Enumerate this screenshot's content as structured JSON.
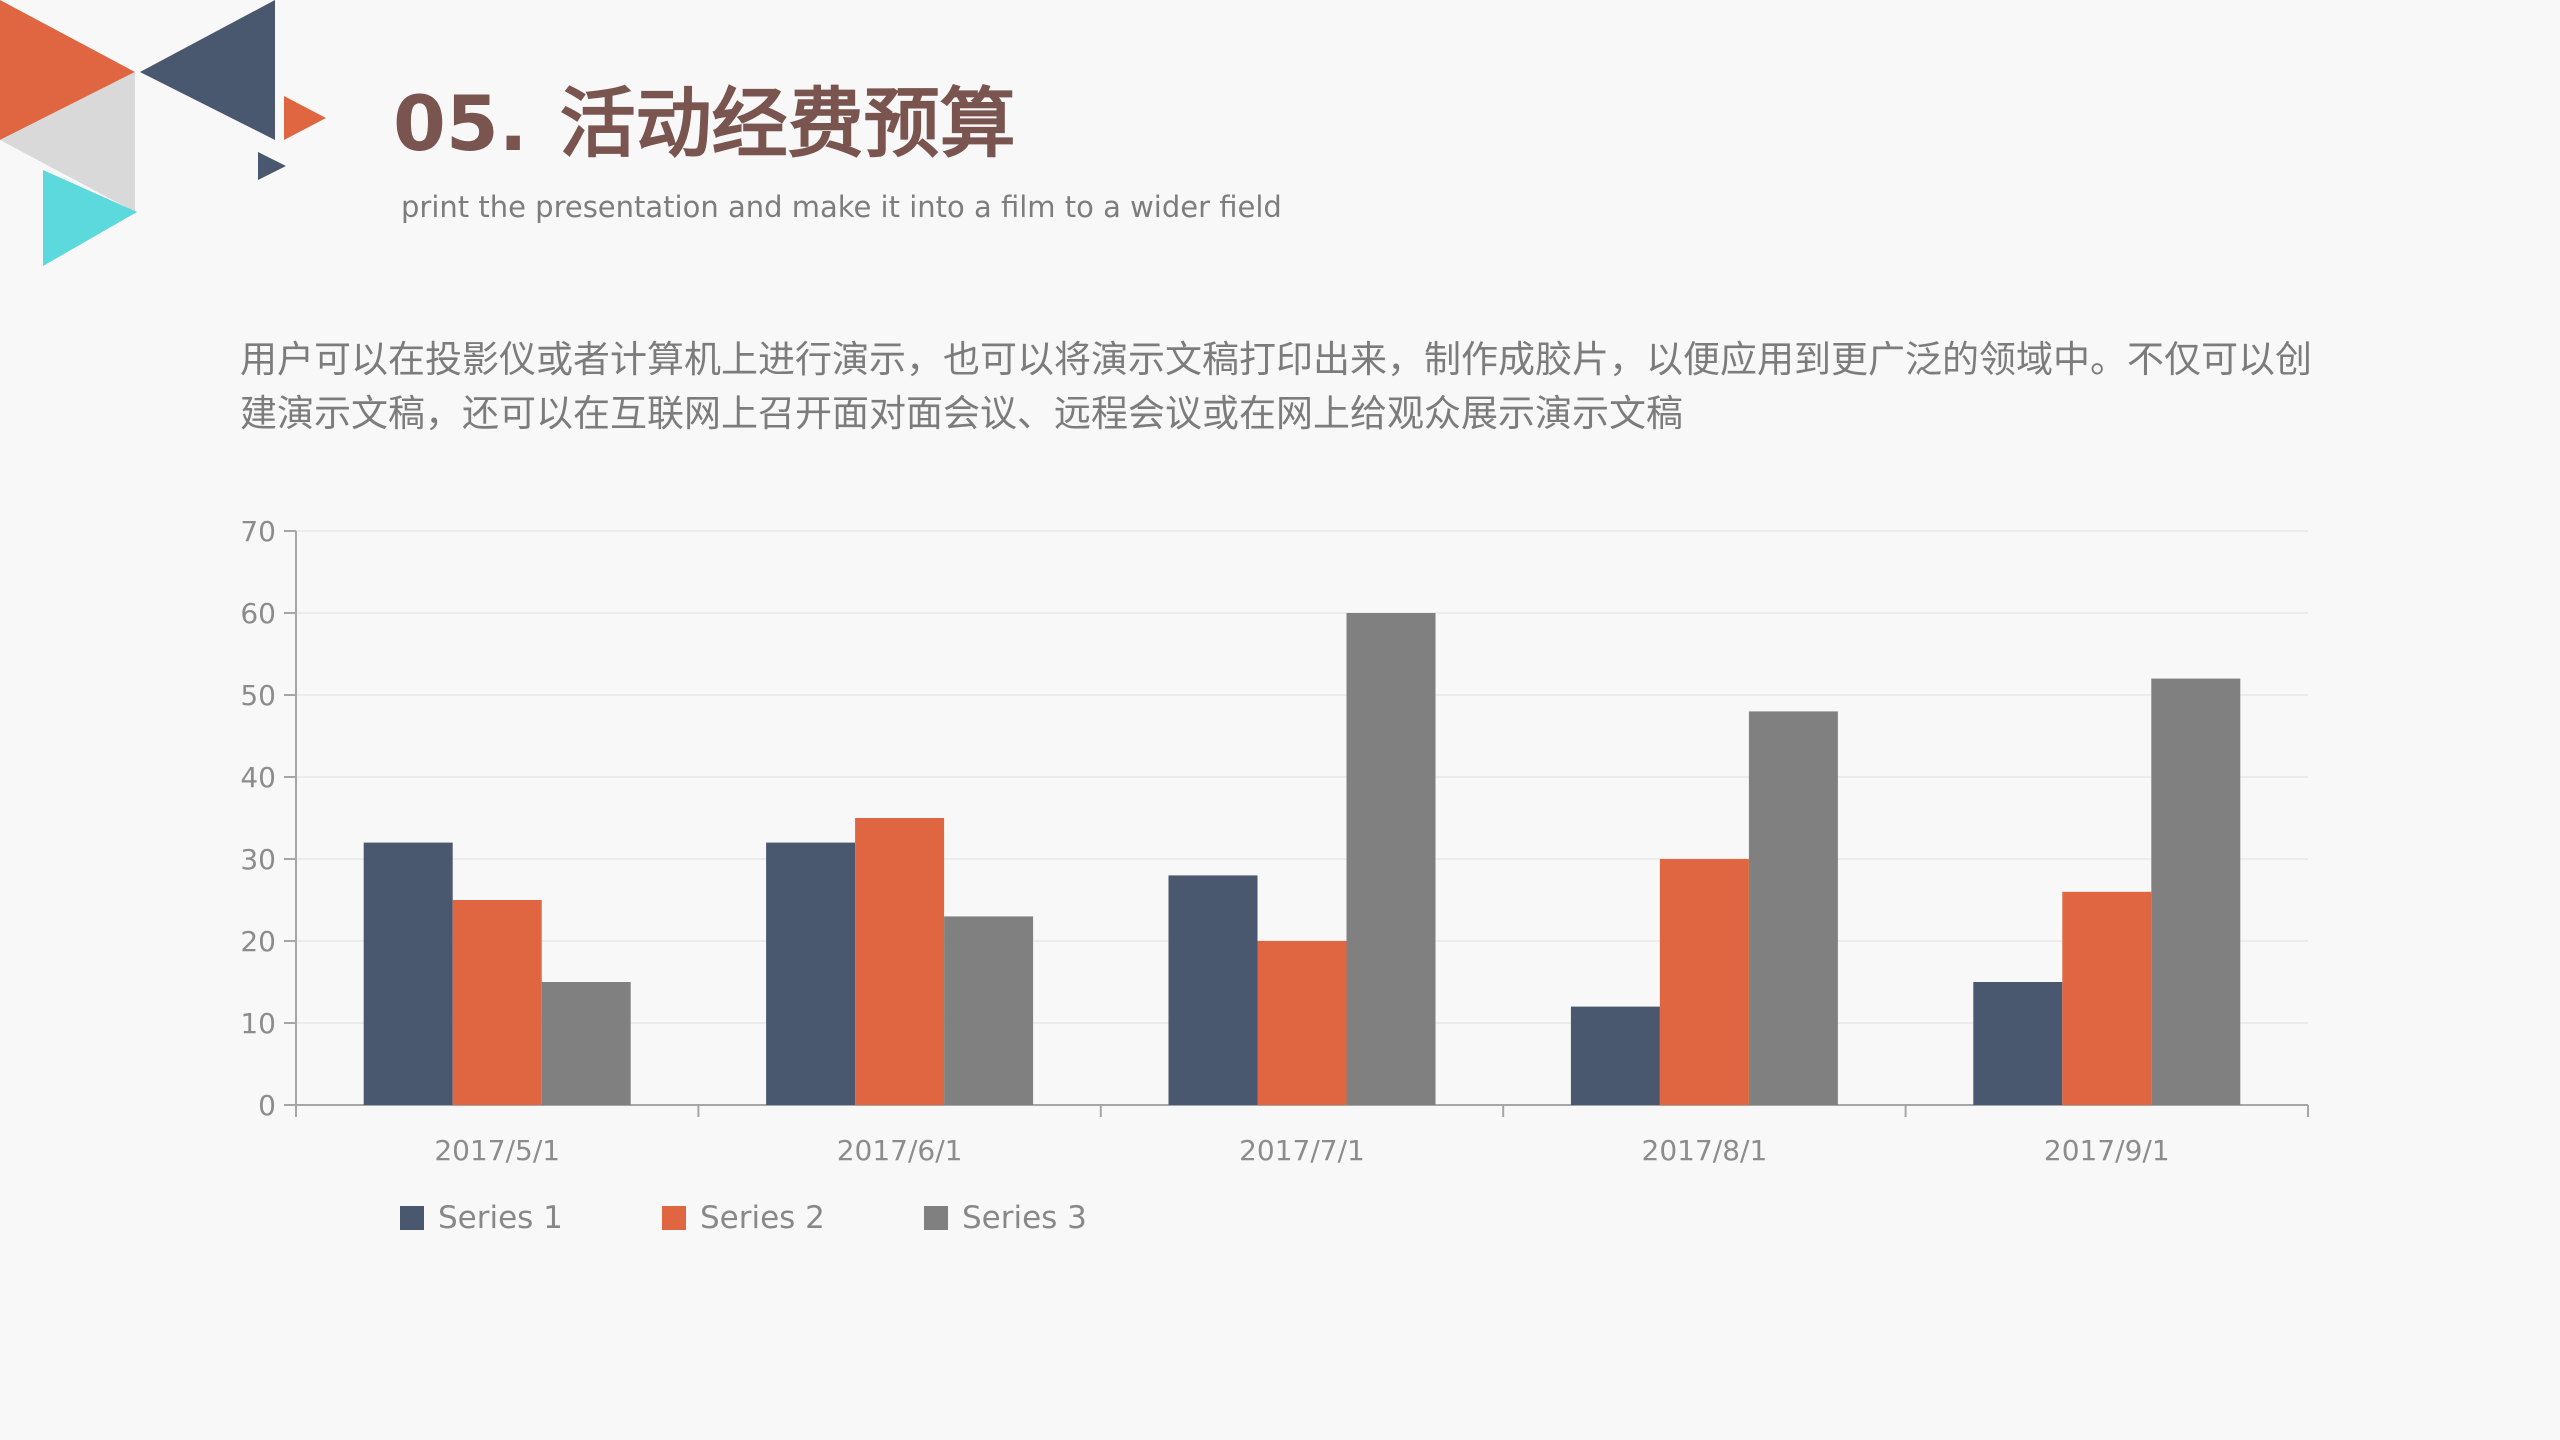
{
  "header": {
    "number": "05.",
    "title": "活动经费预算",
    "subtitle": "print the presentation and make it into a film to a wider field"
  },
  "body": {
    "paragraph": "用户可以在投影仪或者计算机上进行演示，也可以将演示文稿打印出来，制作成胶片，以便应用到更广泛的领域中。不仅可以创建演示文稿，还可以在互联网上召开面对面会议、远程会议或在网上给观众展示演示文稿"
  },
  "colors": {
    "title": "#7a5550",
    "series1": "#4a586f",
    "series2": "#e06641",
    "series3": "#808080",
    "deco_orange": "#e06641",
    "deco_navy": "#4a586f",
    "deco_grey": "#d9d9d9",
    "deco_cyan": "#5bd9dc"
  },
  "chart_data": {
    "type": "bar",
    "categories": [
      "2017/5/1",
      "2017/6/1",
      "2017/7/1",
      "2017/8/1",
      "2017/9/1"
    ],
    "series": [
      {
        "name": "Series 1",
        "values": [
          32,
          32,
          28,
          12,
          15
        ],
        "color": "#4a586f"
      },
      {
        "name": "Series 2",
        "values": [
          25,
          35,
          20,
          30,
          26
        ],
        "color": "#e06641"
      },
      {
        "name": "Series 3",
        "values": [
          15,
          23,
          60,
          48,
          52
        ],
        "color": "#808080"
      }
    ],
    "yticks": [
      "0",
      "10",
      "20",
      "30",
      "40",
      "50",
      "60",
      "70"
    ],
    "ylim": [
      0,
      70
    ],
    "grid": true,
    "legend": "bottom-left"
  }
}
